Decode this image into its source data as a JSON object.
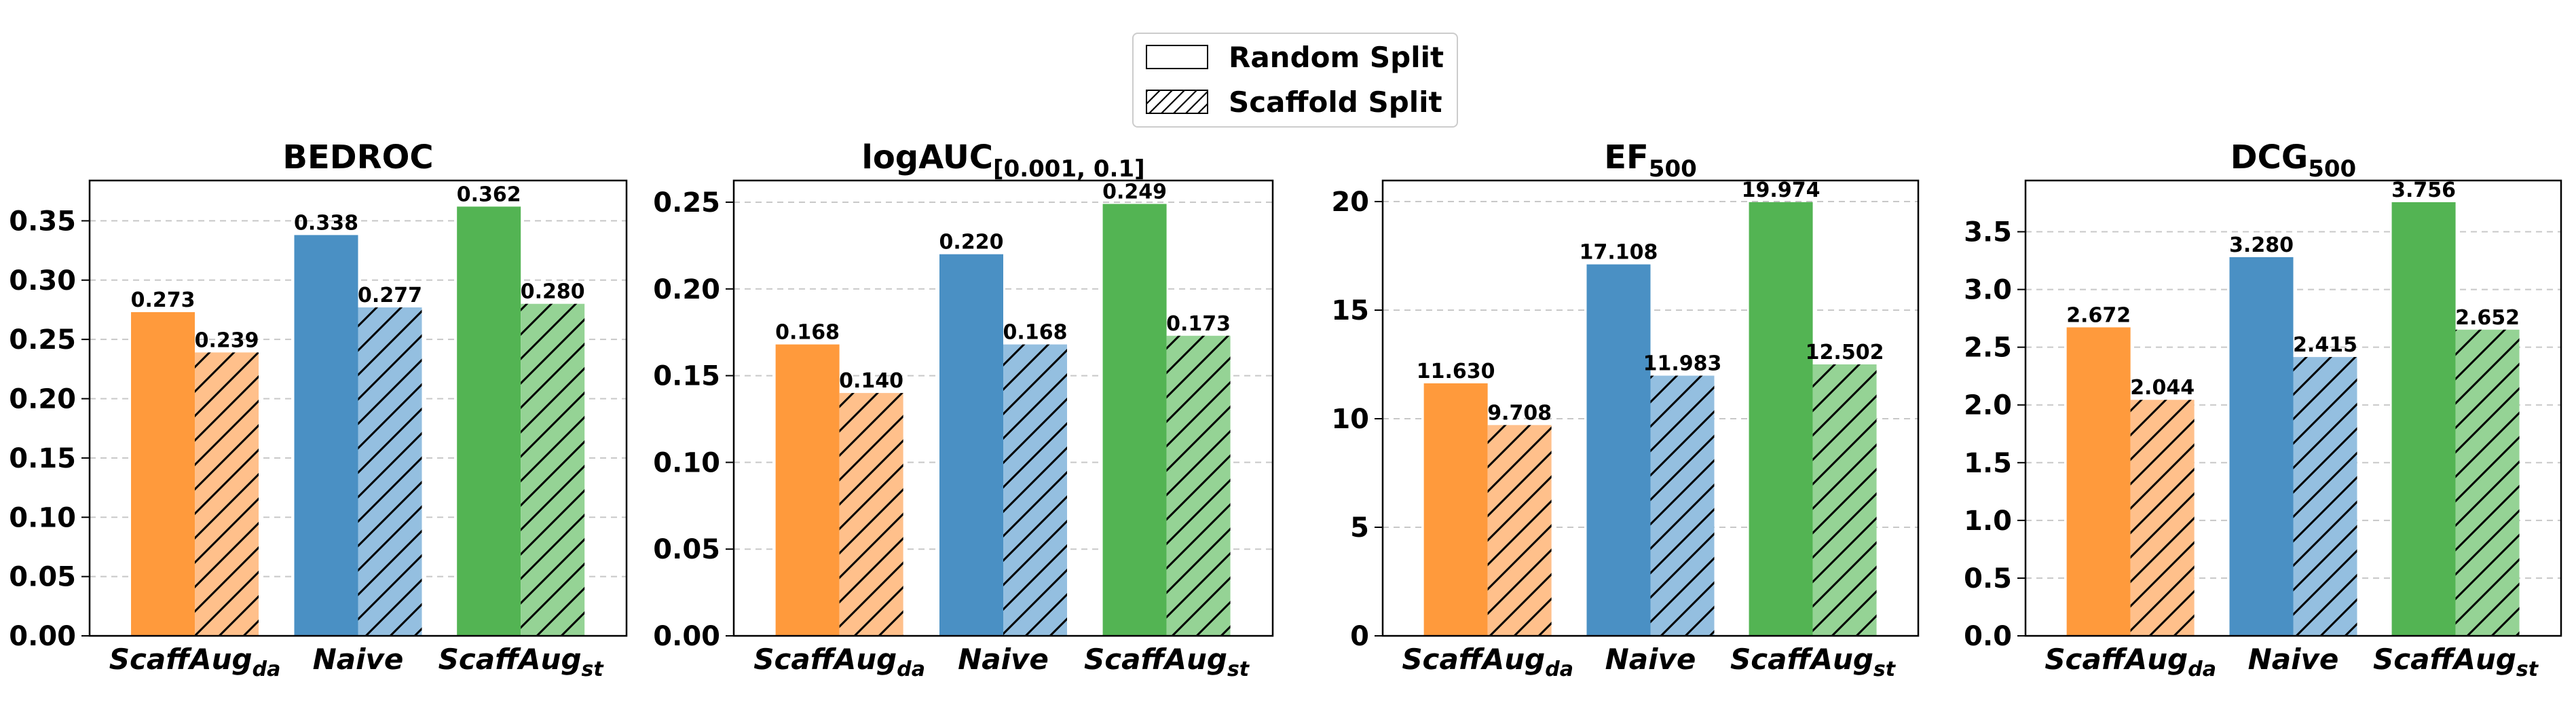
{
  "legend": {
    "items": [
      {
        "label": "Random Split",
        "pattern": "solid"
      },
      {
        "label": "Scaffold Split",
        "pattern": "hatch"
      }
    ]
  },
  "colors": {
    "solid": [
      "#ff9a3c",
      "#4a90c4",
      "#53b453"
    ],
    "hatched": [
      "#ffc08b",
      "#94bfe0",
      "#95d395"
    ],
    "grid": "#c8c8c8"
  },
  "chart_data": [
    {
      "type": "bar",
      "title": "BEDROC",
      "title_sub": "",
      "categories": [
        {
          "main": "ScaffAug",
          "sub": "da"
        },
        {
          "main": "Naive",
          "sub": ""
        },
        {
          "main": "ScaffAug",
          "sub": "st"
        }
      ],
      "series": [
        {
          "name": "Random Split",
          "values": [
            0.273,
            0.338,
            0.362
          ],
          "labels": [
            "0.273",
            "0.338",
            "0.362"
          ]
        },
        {
          "name": "Scaffold Split",
          "values": [
            0.239,
            0.277,
            0.28
          ],
          "labels": [
            "0.239",
            "0.277",
            "0.280"
          ]
        }
      ],
      "ylim": [
        0,
        0.384
      ],
      "yticks": [
        0,
        0.05,
        0.1,
        0.15,
        0.2,
        0.25,
        0.3,
        0.35
      ],
      "ytick_labels": [
        "0.00",
        "0.05",
        "0.10",
        "0.15",
        "0.20",
        "0.25",
        "0.30",
        "0.35"
      ],
      "grid": true
    },
    {
      "type": "bar",
      "title": "logAUC",
      "title_sub": "[0.001, 0.1]",
      "categories": [
        {
          "main": "ScaffAug",
          "sub": "da"
        },
        {
          "main": "Naive",
          "sub": ""
        },
        {
          "main": "ScaffAug",
          "sub": "st"
        }
      ],
      "series": [
        {
          "name": "Random Split",
          "values": [
            0.168,
            0.22,
            0.249
          ],
          "labels": [
            "0.168",
            "0.220",
            "0.249"
          ]
        },
        {
          "name": "Scaffold Split",
          "values": [
            0.14,
            0.168,
            0.173
          ],
          "labels": [
            "0.140",
            "0.168",
            "0.173"
          ]
        }
      ],
      "ylim": [
        0,
        0.2625
      ],
      "yticks": [
        0,
        0.05,
        0.1,
        0.15,
        0.2,
        0.25
      ],
      "ytick_labels": [
        "0.00",
        "0.05",
        "0.10",
        "0.15",
        "0.20",
        "0.25"
      ],
      "grid": true
    },
    {
      "type": "bar",
      "title": "EF",
      "title_sub": "500",
      "categories": [
        {
          "main": "ScaffAug",
          "sub": "da"
        },
        {
          "main": "Naive",
          "sub": ""
        },
        {
          "main": "ScaffAug",
          "sub": "st"
        }
      ],
      "series": [
        {
          "name": "Random Split",
          "values": [
            11.63,
            17.108,
            19.974
          ],
          "labels": [
            "11.630",
            "17.108",
            "19.974"
          ]
        },
        {
          "name": "Scaffold Split",
          "values": [
            9.708,
            11.983,
            12.502
          ],
          "labels": [
            "9.708",
            "11.983",
            "12.502"
          ]
        }
      ],
      "ylim": [
        0,
        20.97
      ],
      "yticks": [
        0,
        5,
        10,
        15,
        20
      ],
      "ytick_labels": [
        "0",
        "5",
        "10",
        "15",
        "20"
      ],
      "grid": true
    },
    {
      "type": "bar",
      "title": "DCG",
      "title_sub": "500",
      "categories": [
        {
          "main": "ScaffAug",
          "sub": "da"
        },
        {
          "main": "Naive",
          "sub": ""
        },
        {
          "main": "ScaffAug",
          "sub": "st"
        }
      ],
      "series": [
        {
          "name": "Random Split",
          "values": [
            2.672,
            3.28,
            3.756
          ],
          "labels": [
            "2.672",
            "3.280",
            "3.756"
          ]
        },
        {
          "name": "Scaffold Split",
          "values": [
            2.044,
            2.415,
            2.652
          ],
          "labels": [
            "2.044",
            "2.415",
            "2.652"
          ]
        }
      ],
      "ylim": [
        0,
        3.9438
      ],
      "yticks": [
        0,
        0.5,
        1.0,
        1.5,
        2.0,
        2.5,
        3.0,
        3.5
      ],
      "ytick_labels": [
        "0.0",
        "0.5",
        "1.0",
        "1.5",
        "2.0",
        "2.5",
        "3.0",
        "3.5"
      ],
      "grid": true
    }
  ]
}
